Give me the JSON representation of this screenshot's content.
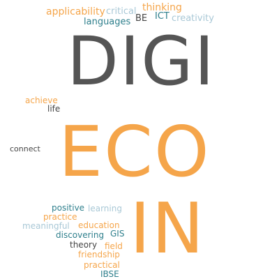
{
  "colors": {
    "gray": "#555555",
    "orange": "#F5A54A",
    "teal": "#2E7F8C",
    "lightblue": "#A9C8D6",
    "darkgray": "#444444"
  },
  "words": {
    "digi": "DIGI",
    "eco": "ECO",
    "in": "IN",
    "applicability": "applicability",
    "critical": "critical",
    "thinking": "thinking",
    "be": "BE",
    "ict": "ICT",
    "languages": "languages",
    "creativity": "creativity",
    "achieve": "achieve",
    "life": "life",
    "connect": "connect",
    "positive": "positive",
    "learning": "learning",
    "practice": "practice",
    "meaningful": "meaningful",
    "education": "education",
    "gis": "GIS",
    "discovering": "discovering",
    "theory": "theory",
    "field": "field",
    "friendship": "friendship",
    "practical": "practical",
    "ibse": "IBSE"
  }
}
